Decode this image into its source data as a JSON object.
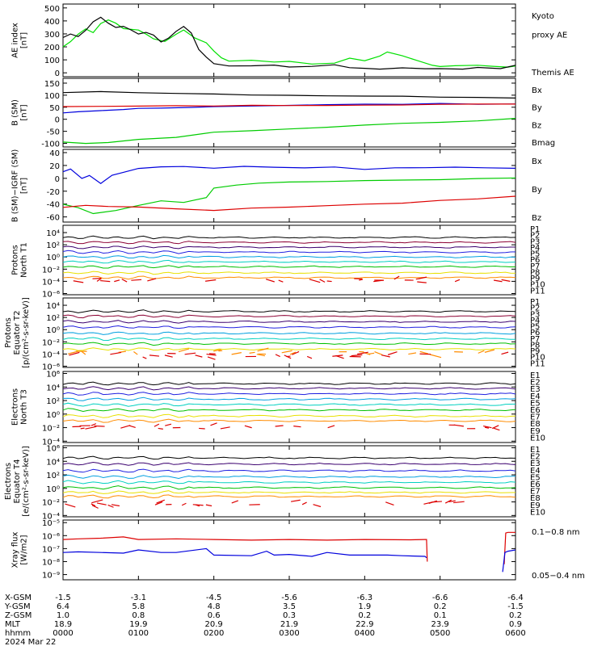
{
  "chart_data": [
    {
      "type": "line",
      "ylabel_lines": [
        "AE index",
        "[nT]"
      ],
      "yticks": [
        "500",
        "400",
        "300",
        "200",
        "100",
        "0"
      ],
      "yticks_val": [
        500,
        400,
        300,
        200,
        100,
        0
      ],
      "ylim": [
        -30,
        530
      ],
      "series": [
        {
          "name": "Kyoto proxy AE",
          "color": "#00e000",
          "x": [
            0,
            0.1,
            0.2,
            0.3,
            0.4,
            0.5,
            0.6,
            0.7,
            0.8,
            1.0,
            1.1,
            1.2,
            1.35,
            1.5,
            1.6,
            1.75,
            1.9,
            2.0,
            2.1,
            2.2,
            2.3,
            2.5,
            2.8,
            3.0,
            3.3,
            3.6,
            3.8,
            4.0,
            4.2,
            4.3,
            4.5,
            4.7,
            4.9,
            5.0,
            5.2,
            5.5,
            5.7,
            5.9,
            6.0
          ],
          "y": [
            200,
            240,
            300,
            340,
            310,
            380,
            410,
            380,
            340,
            330,
            300,
            260,
            240,
            300,
            330,
            270,
            230,
            170,
            115,
            90,
            95,
            100,
            80,
            85,
            70,
            75,
            110,
            95,
            130,
            160,
            130,
            95,
            60,
            45,
            55,
            60,
            50,
            45,
            55
          ]
        },
        {
          "name": "Themis AE",
          "color": "#000000",
          "x": [
            0,
            0.1,
            0.2,
            0.3,
            0.4,
            0.5,
            0.6,
            0.7,
            0.8,
            0.9,
            1.0,
            1.1,
            1.2,
            1.3,
            1.4,
            1.5,
            1.6,
            1.7,
            1.8,
            1.9,
            2.0,
            2.2,
            2.5,
            2.8,
            3.0,
            3.3,
            3.6,
            3.8,
            4.0,
            4.2,
            4.5,
            4.8,
            5.0,
            5.3,
            5.5,
            5.8,
            6.0
          ],
          "y": [
            270,
            300,
            280,
            330,
            390,
            430,
            380,
            350,
            360,
            330,
            300,
            310,
            290,
            240,
            270,
            320,
            360,
            310,
            180,
            120,
            70,
            50,
            55,
            60,
            45,
            50,
            60,
            40,
            35,
            30,
            40,
            30,
            35,
            30,
            40,
            30,
            55
          ]
        }
      ],
      "legend": [
        {
          "text": "Kyoto",
          "color": "#00e000"
        },
        {
          "text": "proxy AE",
          "color": "#00e000"
        },
        {
          "text": "",
          "color": "#000000"
        },
        {
          "text": "Themis AE",
          "color": "#000000"
        }
      ]
    },
    {
      "type": "line",
      "ylabel_lines": [
        "B (SM)",
        "[nT]"
      ],
      "yticks": [
        "150",
        "100",
        "50",
        "0",
        "-50",
        "-100"
      ],
      "yticks_val": [
        150,
        100,
        50,
        0,
        -50,
        -100
      ],
      "ylim": [
        -115,
        170
      ],
      "series": [
        {
          "name": "Bx",
          "color": "#0000dd",
          "x": [
            0,
            0.2,
            0.5,
            0.8,
            1.0,
            1.3,
            1.7,
            2.0,
            2.5,
            3.0,
            3.5,
            4.0,
            4.5,
            5.0,
            5.5,
            6.0
          ],
          "y": [
            25,
            30,
            35,
            40,
            45,
            48,
            50,
            53,
            56,
            58,
            60,
            62,
            63,
            64,
            64,
            64
          ]
        },
        {
          "name": "By",
          "color": "#00cc00",
          "x": [
            0,
            0.3,
            0.6,
            1.0,
            1.5,
            2.0,
            2.5,
            3.0,
            3.5,
            4.0,
            4.5,
            5.0,
            5.5,
            6.0
          ],
          "y": [
            -95,
            -100,
            -95,
            -85,
            -75,
            -55,
            -48,
            -40,
            -32,
            -25,
            -18,
            -12,
            -5,
            5
          ]
        },
        {
          "name": "Bz",
          "color": "#dd0000",
          "x": [
            0,
            0.5,
            1.0,
            1.5,
            2.0,
            2.5,
            3.0,
            3.5,
            4.0,
            4.5,
            5.0,
            5.5,
            6.0
          ],
          "y": [
            52,
            53,
            54,
            55,
            56,
            57,
            58,
            59,
            60,
            61,
            62,
            62,
            62
          ]
        },
        {
          "name": "Bmag",
          "color": "#000000",
          "x": [
            0,
            0.5,
            1.0,
            1.5,
            2.0,
            2.5,
            3.0,
            3.5,
            4.0,
            4.5,
            5.0,
            5.5,
            6.0
          ],
          "y": [
            112,
            115,
            112,
            108,
            105,
            102,
            100,
            98,
            97,
            95,
            93,
            92,
            90
          ]
        }
      ],
      "legend": [
        {
          "text": "Bx",
          "color": "#0000dd"
        },
        {
          "text": "By",
          "color": "#00cc00"
        },
        {
          "text": "Bz",
          "color": "#dd0000"
        },
        {
          "text": "Bmag",
          "color": "#000000"
        }
      ]
    },
    {
      "type": "line",
      "ylabel_lines": [
        "B (SM)−IGRF (SM)",
        "[nT]"
      ],
      "yticks": [
        "40",
        "20",
        "0",
        "-20",
        "-40",
        "-60"
      ],
      "yticks_val": [
        40,
        20,
        0,
        -20,
        -40,
        -60
      ],
      "ylim": [
        -68,
        45
      ],
      "series": [
        {
          "name": "Bx",
          "color": "#0000dd",
          "x": [
            0,
            0.1,
            0.25,
            0.35,
            0.5,
            0.65,
            0.8,
            1.0,
            1.3,
            1.6,
            2.0,
            2.4,
            2.8,
            3.2,
            3.6,
            4.0,
            4.4,
            4.8,
            5.2,
            5.6,
            6.0
          ],
          "y": [
            10,
            15,
            0,
            5,
            -8,
            5,
            10,
            15,
            18,
            18,
            16,
            18,
            17,
            16,
            18,
            14,
            17,
            16,
            18,
            17,
            16
          ]
        },
        {
          "name": "By",
          "color": "#00cc00",
          "x": [
            0,
            0.2,
            0.4,
            0.7,
            1.0,
            1.3,
            1.6,
            1.9,
            2.0,
            2.3,
            2.6,
            3.0,
            3.5,
            4.0,
            4.5,
            5.0,
            5.5,
            6.0
          ],
          "y": [
            -40,
            -45,
            -55,
            -50,
            -42,
            -35,
            -38,
            -30,
            -15,
            -10,
            -8,
            -6,
            -5,
            -4,
            -3,
            -2,
            -1,
            0
          ]
        },
        {
          "name": "Bz",
          "color": "#dd0000",
          "x": [
            0,
            0.3,
            0.6,
            1.0,
            1.5,
            2.0,
            2.5,
            3.0,
            3.5,
            4.0,
            4.5,
            5.0,
            5.5,
            6.0
          ],
          "y": [
            -45,
            -42,
            -44,
            -45,
            -48,
            -50,
            -47,
            -45,
            -43,
            -40,
            -38,
            -35,
            -32,
            -28
          ]
        }
      ],
      "legend": [
        {
          "text": "Bx",
          "color": "#0000dd"
        },
        {
          "text": "By",
          "color": "#00cc00"
        },
        {
          "text": "Bz",
          "color": "#dd0000"
        }
      ]
    },
    {
      "type": "line",
      "log": true,
      "ylabel_lines": [
        "Protons",
        "North T1"
      ],
      "yticks": [
        "10⁴",
        "10²",
        "10⁰",
        "10⁻²",
        "10⁻⁴",
        "10⁻⁶"
      ],
      "yticks_val": [
        4,
        2,
        0,
        -2,
        -4,
        -6
      ],
      "ylim": [
        -6.2,
        5.2
      ],
      "channels": [
        {
          "name": "P1",
          "color": "#000000",
          "level": 3.2
        },
        {
          "name": "P2",
          "color": "#8b0033",
          "level": 2.4
        },
        {
          "name": "P3",
          "color": "#3b006f",
          "level": 1.6
        },
        {
          "name": "P4",
          "color": "#2020e0",
          "level": 0.8
        },
        {
          "name": "P5",
          "color": "#00a0e0",
          "level": 0.0
        },
        {
          "name": "P6",
          "color": "#00d0c0",
          "level": -0.8
        },
        {
          "name": "P7",
          "color": "#00c000",
          "level": -1.6
        },
        {
          "name": "P8",
          "color": "#e8e000",
          "level": -2.6
        },
        {
          "name": "P9",
          "color": "#ff8c00",
          "level": -3.4
        },
        {
          "name": "P10",
          "color": "#dd0000",
          "level": -3.8,
          "dashed": true
        },
        {
          "name": "P11",
          "color": "#cc0000",
          "level": -4.6,
          "hidden": true
        }
      ]
    },
    {
      "type": "line",
      "log": true,
      "ylabel_lines": [
        "Protons",
        "Equator T2",
        "[p/(cm²-s-sr-keV)]"
      ],
      "yticks": [
        "10⁴",
        "10²",
        "10⁰",
        "10⁻²",
        "10⁻⁴",
        "10⁻⁶"
      ],
      "yticks_val": [
        4,
        2,
        0,
        -2,
        -4,
        -6
      ],
      "ylim": [
        -6.2,
        5.2
      ],
      "channels": [
        {
          "name": "P1",
          "color": "#000000",
          "level": 3.0
        },
        {
          "name": "P2",
          "color": "#8b0033",
          "level": 2.2
        },
        {
          "name": "P3",
          "color": "#3b006f",
          "level": 1.3
        },
        {
          "name": "P4",
          "color": "#2020e0",
          "level": 0.4
        },
        {
          "name": "P5",
          "color": "#00a0e0",
          "level": -0.6
        },
        {
          "name": "P6",
          "color": "#00d0c0",
          "level": -1.5
        },
        {
          "name": "P7",
          "color": "#00c000",
          "level": -2.3
        },
        {
          "name": "P8",
          "color": "#e8e000",
          "level": -3.2
        },
        {
          "name": "P9",
          "color": "#ff8c00",
          "level": -3.8,
          "dashed": true
        },
        {
          "name": "P10",
          "color": "#dd0000",
          "level": -4.2,
          "dashed": true
        },
        {
          "name": "P11",
          "color": "#cc0000",
          "level": -5.0,
          "hidden": true
        }
      ]
    },
    {
      "type": "line",
      "log": true,
      "ylabel_lines": [
        "Electrons",
        "North T3"
      ],
      "yticks": [
        "10⁶",
        "10⁴",
        "10²",
        "10⁰",
        "10⁻²",
        "10⁻⁴"
      ],
      "yticks_val": [
        6,
        4,
        2,
        0,
        -2,
        -4
      ],
      "ylim": [
        -4.2,
        6.3
      ],
      "channels": [
        {
          "name": "E1",
          "color": "#000000",
          "level": 4.5
        },
        {
          "name": "E2",
          "color": "#3b006f",
          "level": 3.8
        },
        {
          "name": "E3",
          "color": "#2020e0",
          "level": 3.0
        },
        {
          "name": "E4",
          "color": "#00a0e0",
          "level": 2.2
        },
        {
          "name": "E5",
          "color": "#00d0c0",
          "level": 1.4
        },
        {
          "name": "E6",
          "color": "#00c000",
          "level": 0.6
        },
        {
          "name": "E7",
          "color": "#e8e000",
          "level": -0.3
        },
        {
          "name": "E8",
          "color": "#ff8c00",
          "level": -1.0
        },
        {
          "name": "E9",
          "color": "#dd0000",
          "level": -1.9,
          "dashed": true
        },
        {
          "name": "E10",
          "color": "#cc0000",
          "level": -3.0,
          "hidden": true
        }
      ]
    },
    {
      "type": "line",
      "log": true,
      "ylabel_lines": [
        "Electrons",
        "Equator T4",
        "[e/(cm²-s-sr-keV)]"
      ],
      "yticks": [
        "10⁶",
        "10⁴",
        "10²",
        "10⁰",
        "10⁻²",
        "10⁻⁴"
      ],
      "yticks_val": [
        6,
        4,
        2,
        0,
        -2,
        -4
      ],
      "ylim": [
        -4.2,
        6.3
      ],
      "channels": [
        {
          "name": "E1",
          "color": "#000000",
          "level": 4.5
        },
        {
          "name": "E2",
          "color": "#3b006f",
          "level": 3.6
        },
        {
          "name": "E3",
          "color": "#2020e0",
          "level": 2.6
        },
        {
          "name": "E4",
          "color": "#00a0e0",
          "level": 1.7
        },
        {
          "name": "E5",
          "color": "#00d0c0",
          "level": 0.9
        },
        {
          "name": "E6",
          "color": "#00c000",
          "level": 0.1
        },
        {
          "name": "E7",
          "color": "#e8e000",
          "level": -0.6
        },
        {
          "name": "E8",
          "color": "#ff8c00",
          "level": -1.2
        },
        {
          "name": "E9",
          "color": "#dd0000",
          "level": -2.2,
          "dashed": true
        },
        {
          "name": "E10",
          "color": "#cc0000",
          "level": -3.0,
          "hidden": true
        }
      ]
    },
    {
      "type": "line",
      "log": true,
      "ylabel_lines": [
        "Xray flux",
        "[W/m2]"
      ],
      "yticks": [
        "10⁻⁵",
        "10⁻⁶",
        "10⁻⁷",
        "10⁻⁸",
        "10⁻⁹"
      ],
      "yticks_val": [
        -5,
        -6,
        -7,
        -8,
        -9
      ],
      "ylim": [
        -9.4,
        -4.8
      ],
      "series": [
        {
          "name": "0.1−0.8 nm",
          "color": "#dd0000",
          "x": [
            0,
            0.2,
            0.5,
            0.8,
            1.0,
            1.5,
            2.0,
            2.5,
            3.0,
            3.5,
            4.0,
            4.6,
            4.8,
            4.82,
            4.83
          ],
          "y": [
            -6.3,
            -6.25,
            -6.2,
            -6.1,
            -6.3,
            -6.25,
            -6.3,
            -6.35,
            -6.3,
            -6.35,
            -6.3,
            -6.32,
            -6.3,
            -6.3,
            -8.0
          ],
          "tail_x": [
            5.85,
            5.87,
            5.9,
            6.0
          ],
          "tail_y": [
            -8.2,
            -5.8,
            -5.75,
            -5.75
          ]
        },
        {
          "name": "0.05−0.4 nm",
          "color": "#0000dd",
          "x": [
            0,
            0.2,
            0.5,
            0.8,
            1.0,
            1.3,
            1.5,
            1.9,
            2.0,
            2.5,
            2.7,
            2.8,
            3.0,
            3.3,
            3.5,
            3.8,
            4.0,
            4.3,
            4.5,
            4.8,
            4.82
          ],
          "y": [
            -7.3,
            -7.25,
            -7.3,
            -7.35,
            -7.1,
            -7.3,
            -7.3,
            -7.0,
            -7.5,
            -7.55,
            -7.2,
            -7.5,
            -7.45,
            -7.6,
            -7.3,
            -7.5,
            -7.5,
            -7.5,
            -7.55,
            -7.6,
            -7.7
          ],
          "tail_x": [
            5.83,
            5.86,
            5.9,
            6.0
          ],
          "tail_y": [
            -8.8,
            -7.3,
            -7.2,
            -7.1
          ]
        }
      ],
      "legend": [
        {
          "text": "0.1−0.8 nm",
          "color": "#dd0000"
        },
        {
          "text": "0.05−0.4 nm",
          "color": "#0000dd"
        }
      ]
    }
  ],
  "axis_x": {
    "range_hours": [
      0,
      6
    ],
    "ephemeris": [
      {
        "label": "X-GSM",
        "values": [
          "-1.5",
          "-3.1",
          "-4.5",
          "-5.6",
          "-6.3",
          "-6.6",
          "-6.4"
        ]
      },
      {
        "label": "Y-GSM",
        "values": [
          "6.4",
          "5.8",
          "4.8",
          "3.5",
          "1.9",
          "0.2",
          "-1.5"
        ]
      },
      {
        "label": "Z-GSM",
        "values": [
          "1.0",
          "0.8",
          "0.6",
          "0.3",
          "0.2",
          "0.1",
          "0.2"
        ]
      },
      {
        "label": "MLT",
        "values": [
          "18.9",
          "19.9",
          "20.9",
          "21.9",
          "22.9",
          "23.9",
          "0.9"
        ]
      },
      {
        "label": "hhmm",
        "values": [
          "0000",
          "0100",
          "0200",
          "0300",
          "0400",
          "0500",
          "0600"
        ]
      }
    ],
    "date": "2024 Mar 22"
  }
}
